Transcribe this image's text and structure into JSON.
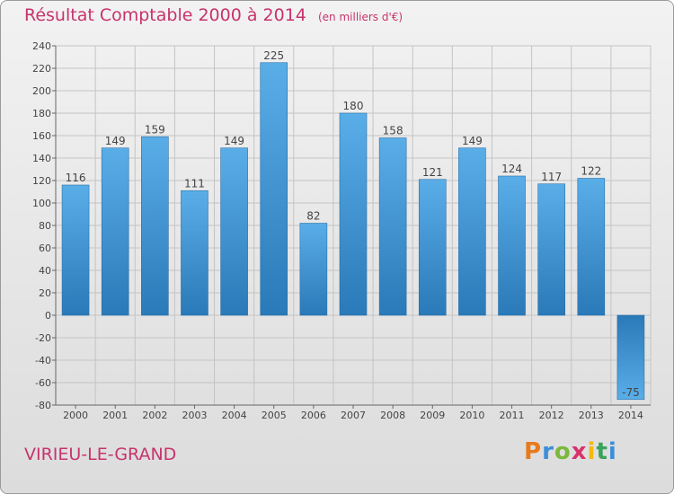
{
  "header": {
    "title": "Résultat Comptable 2000 à 2014",
    "unit": "(en milliers d'€)"
  },
  "footer": {
    "commune": "VIRIEU-LE-GRAND",
    "logo": "Proxiti"
  },
  "colors": {
    "accent": "#c8336c",
    "bar_light": "#5aaee8",
    "bar_dark": "#2a79b8"
  },
  "chart_data": {
    "type": "bar",
    "categories": [
      "2000",
      "2001",
      "2002",
      "2003",
      "2004",
      "2005",
      "2006",
      "2007",
      "2008",
      "2009",
      "2010",
      "2011",
      "2012",
      "2013",
      "2014"
    ],
    "values": [
      116,
      149,
      159,
      111,
      149,
      225,
      82,
      180,
      158,
      121,
      149,
      124,
      117,
      122,
      -75
    ],
    "title": "Résultat Comptable 2000 à 2014",
    "xlabel": "",
    "ylabel": "",
    "ylim": [
      -80,
      240
    ],
    "yticks": [
      -80,
      -60,
      -40,
      -20,
      0,
      20,
      40,
      60,
      80,
      100,
      120,
      140,
      160,
      180,
      200,
      220,
      240
    ],
    "grid": true,
    "legend": "none"
  }
}
